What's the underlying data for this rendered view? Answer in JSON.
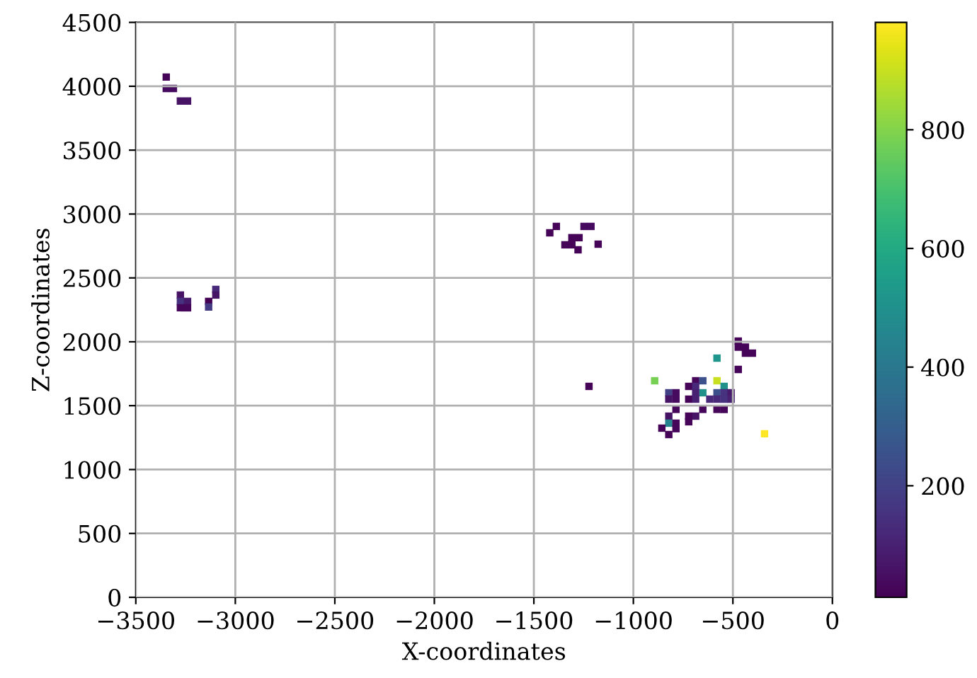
{
  "chart_data": {
    "type": "scatter",
    "marker": "square",
    "xlabel": "X-coordinates",
    "ylabel": "Z-coordinates",
    "xlim": [
      -3500,
      0
    ],
    "xticks": [
      -3500,
      -3000,
      -2500,
      -2000,
      -1500,
      -1000,
      -500,
      0
    ],
    "ylim": [
      0,
      4500
    ],
    "yticks": [
      0,
      500,
      1000,
      1500,
      2000,
      2500,
      3000,
      3500,
      4000,
      4500
    ],
    "grid": true,
    "clim": [
      12,
      981
    ],
    "cticks": [
      200,
      400,
      600,
      800
    ],
    "x": [
      -3347,
      -3347,
      -3311,
      -3276,
      -3240,
      -3276,
      -3276,
      -3240,
      -3276,
      -3240,
      -3098,
      -3098,
      -3134,
      -3134,
      -1420,
      -1387,
      -1248,
      -1213,
      -1309,
      -1273,
      -1344,
      -1309,
      -1278,
      -1177,
      -1223,
      -473,
      -473,
      -437,
      -437,
      -402,
      -580,
      -473,
      -893,
      -580,
      -687,
      -651,
      -722,
      -687,
      -544,
      -822,
      -786,
      -651,
      -580,
      -544,
      -509,
      -687,
      -722,
      -687,
      -616,
      -580,
      -544,
      -509,
      -822,
      -786,
      -786,
      -651,
      -580,
      -544,
      -822,
      -687,
      -722,
      -722,
      -822,
      -857,
      -786,
      -786,
      -822,
      -341
    ],
    "values": [
      4072,
      3983,
      3983,
      3884,
      3884,
      2366,
      2316,
      2316,
      2266,
      2266,
      2410,
      2366,
      2316,
      2272,
      2853,
      2903,
      2903,
      2903,
      2815,
      2815,
      2759,
      2759,
      2720,
      2764,
      1651,
      2005,
      1958,
      1958,
      1911,
      1911,
      1872,
      1784,
      1695,
      1695,
      1695,
      1695,
      1651,
      1651,
      1651,
      1601,
      1601,
      1601,
      1601,
      1601,
      1601,
      1601,
      1551,
      1551,
      1551,
      1551,
      1551,
      1551,
      1551,
      1551,
      1471,
      1471,
      1471,
      1471,
      1418,
      1418,
      1418,
      1374,
      1363,
      1324,
      1363,
      1320,
      1274,
      1280
    ],
    "cvalues": [
      20,
      40,
      40,
      60,
      60,
      60,
      150,
      80,
      30,
      30,
      120,
      60,
      15,
      180,
      20,
      20,
      40,
      40,
      20,
      20,
      20,
      20,
      20,
      20,
      20,
      20,
      20,
      20,
      20,
      20,
      520,
      20,
      780,
      900,
      30,
      250,
      20,
      120,
      500,
      200,
      40,
      500,
      250,
      150,
      80,
      100,
      20,
      100,
      120,
      120,
      150,
      100,
      60,
      40,
      30,
      30,
      30,
      30,
      60,
      60,
      20,
      20,
      450,
      20,
      30,
      30,
      20,
      981
    ]
  }
}
